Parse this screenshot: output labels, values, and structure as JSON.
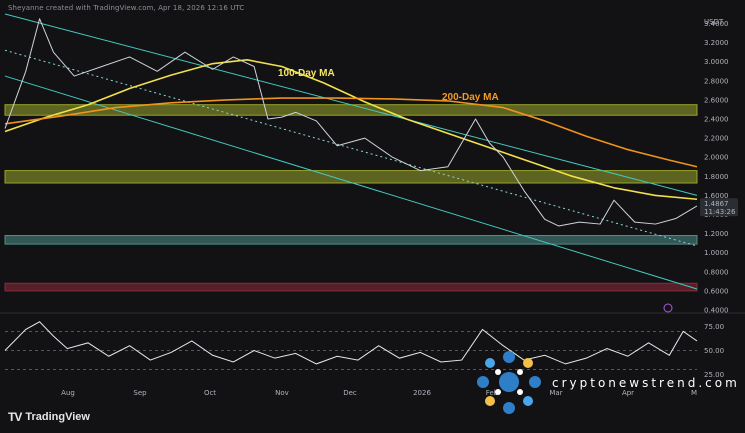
{
  "header": {
    "caption": "Sheyanne created with TradingView.com, Apr 18, 2026 12:16 UTC"
  },
  "branding": {
    "tradingview": "TradingView",
    "tv_logo": "TV",
    "watermark": "cryptonewstrend.com"
  },
  "chart_data": [
    {
      "type": "line",
      "title": "",
      "currency": "USDT",
      "y_axis": {
        "min": 0.4,
        "max": 3.5,
        "ticks": [
          "3.4000",
          "3.2000",
          "3.0000",
          "2.8000",
          "2.6000",
          "2.4000",
          "2.2000",
          "2.0000",
          "1.8000",
          "1.6000",
          "1.4000",
          "1.2000",
          "1.0000",
          "0.8000",
          "0.6000",
          "0.4000"
        ]
      },
      "x_axis": {
        "ticks": [
          "Aug",
          "Sep",
          "Oct",
          "Nov",
          "Dec",
          "2026",
          "Feb",
          "Mar",
          "Apr",
          "M"
        ]
      },
      "last_price": {
        "value": "1.4867",
        "countdown": "11:43:26"
      },
      "annotations": [
        {
          "text": "100-Day MA",
          "color": "#f5e663"
        },
        {
          "text": "200-Day MA",
          "color": "#f59a1f"
        }
      ],
      "zones": [
        {
          "kind": "resistance",
          "low": 2.44,
          "high": 2.55,
          "color": "#9aa52a"
        },
        {
          "kind": "resistance",
          "low": 1.73,
          "high": 1.86,
          "color": "#9aa52a"
        },
        {
          "kind": "support",
          "low": 1.09,
          "high": 1.18,
          "color": "#4f8f8a"
        },
        {
          "kind": "support",
          "low": 0.6,
          "high": 0.68,
          "color": "#8e2a3a"
        }
      ],
      "channel": [
        {
          "x": [
            0,
            1
          ],
          "y": [
            3.5,
            1.6
          ],
          "color": "#44c8c0"
        },
        {
          "x": [
            0,
            1
          ],
          "y": [
            2.85,
            0.62
          ],
          "color": "#44c8c0"
        },
        {
          "x": [
            0,
            1
          ],
          "y": [
            3.12,
            1.07
          ],
          "color": "#8ad7d3",
          "dashed": true
        }
      ],
      "series": [
        {
          "name": "100-Day MA",
          "color": "#f2e14b",
          "x": [
            0.0,
            0.06,
            0.12,
            0.18,
            0.24,
            0.3,
            0.35,
            0.4,
            0.46,
            0.52,
            0.58,
            0.64,
            0.7,
            0.76,
            0.82,
            0.88,
            0.94,
            1.0
          ],
          "y": [
            2.27,
            2.42,
            2.55,
            2.72,
            2.86,
            2.98,
            3.02,
            2.95,
            2.78,
            2.58,
            2.4,
            2.25,
            2.1,
            1.95,
            1.8,
            1.68,
            1.6,
            1.56
          ]
        },
        {
          "name": "200-Day MA",
          "color": "#f0931d",
          "x": [
            0.0,
            0.08,
            0.16,
            0.24,
            0.32,
            0.4,
            0.48,
            0.56,
            0.64,
            0.72,
            0.78,
            0.84,
            0.9,
            0.96,
            1.0
          ],
          "y": [
            2.35,
            2.43,
            2.52,
            2.57,
            2.6,
            2.62,
            2.62,
            2.61,
            2.59,
            2.52,
            2.38,
            2.22,
            2.08,
            1.97,
            1.9
          ]
        },
        {
          "name": "Price",
          "color": "#cfd3da",
          "x": [
            0.0,
            0.03,
            0.05,
            0.07,
            0.1,
            0.14,
            0.18,
            0.22,
            0.26,
            0.3,
            0.33,
            0.36,
            0.38,
            0.4,
            0.42,
            0.45,
            0.48,
            0.52,
            0.56,
            0.6,
            0.64,
            0.68,
            0.7,
            0.72,
            0.75,
            0.78,
            0.8,
            0.83,
            0.86,
            0.88,
            0.91,
            0.94,
            0.97,
            1.0
          ],
          "y": [
            2.3,
            2.9,
            3.45,
            3.1,
            2.85,
            2.95,
            3.05,
            2.9,
            3.1,
            2.92,
            3.05,
            2.95,
            2.4,
            2.42,
            2.47,
            2.38,
            2.12,
            2.2,
            2.0,
            1.86,
            1.9,
            2.4,
            2.15,
            2.0,
            1.65,
            1.35,
            1.28,
            1.32,
            1.3,
            1.55,
            1.32,
            1.3,
            1.36,
            1.49
          ]
        }
      ]
    },
    {
      "type": "line",
      "title": "",
      "y_axis": {
        "min": 15,
        "max": 85,
        "ticks": [
          "75.00",
          "50.00",
          "25.00"
        ]
      },
      "levels": [
        70,
        50,
        30
      ],
      "series": [
        {
          "name": "",
          "color": "#e6e8ee",
          "x": [
            0.0,
            0.03,
            0.05,
            0.07,
            0.09,
            0.12,
            0.15,
            0.18,
            0.21,
            0.24,
            0.27,
            0.3,
            0.33,
            0.36,
            0.39,
            0.42,
            0.45,
            0.48,
            0.51,
            0.54,
            0.57,
            0.6,
            0.63,
            0.66,
            0.69,
            0.72,
            0.75,
            0.78,
            0.81,
            0.84,
            0.87,
            0.9,
            0.93,
            0.96,
            0.98,
            1.0
          ],
          "y": [
            50,
            72,
            80,
            65,
            52,
            58,
            44,
            55,
            40,
            48,
            60,
            45,
            38,
            50,
            42,
            47,
            36,
            44,
            40,
            55,
            42,
            48,
            38,
            40,
            72,
            55,
            40,
            45,
            36,
            42,
            52,
            44,
            58,
            45,
            70,
            60
          ]
        }
      ]
    }
  ]
}
